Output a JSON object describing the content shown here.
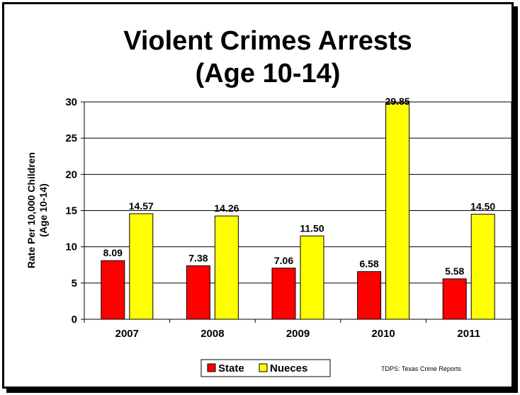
{
  "chart_data": {
    "type": "bar",
    "title_line1": "Violent Crimes Arrests",
    "title_line2": "(Age 10-14)",
    "ylabel_line1": "Rate Per 10,000 Children",
    "ylabel_line2": "(Age 10-14)",
    "xlabel": "",
    "ylim": [
      0,
      30
    ],
    "yticks": [
      0,
      5,
      10,
      15,
      20,
      25,
      30
    ],
    "grid": true,
    "legend_position": "bottom",
    "categories": [
      "2007",
      "2008",
      "2009",
      "2010",
      "2011"
    ],
    "series": [
      {
        "name": "State",
        "color": "#ff0000",
        "values": [
          8.09,
          7.38,
          7.06,
          6.58,
          5.58
        ],
        "labels": [
          "8.09",
          "7.38",
          "7.06",
          "6.58",
          "5.58"
        ]
      },
      {
        "name": "Nueces",
        "color": "#ffff00",
        "values": [
          14.57,
          14.26,
          11.5,
          29.85,
          14.5
        ],
        "labels": [
          "14.57",
          "14.26",
          "11.50",
          "29.85",
          "14.50"
        ]
      }
    ],
    "source_note": "TDPS: Texas Crime Reports"
  }
}
